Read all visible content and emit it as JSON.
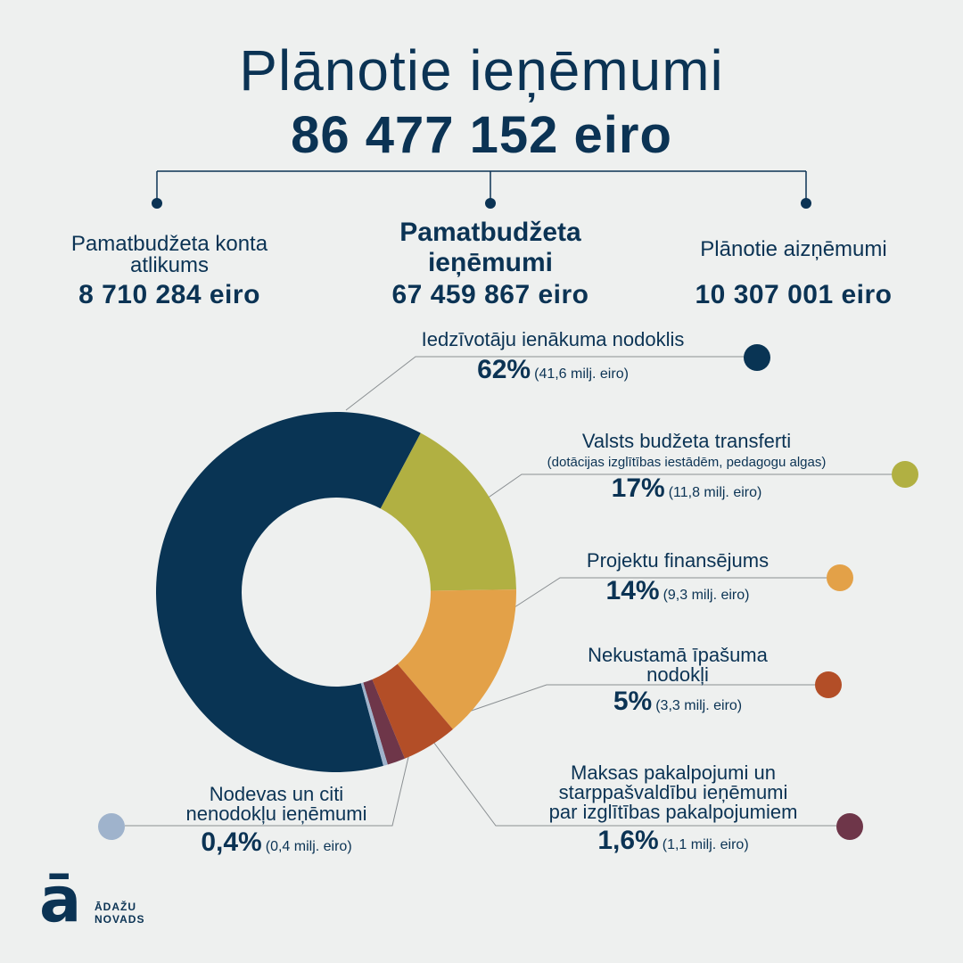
{
  "header": {
    "title": "Plānotie ieņēmumi",
    "total": "86 477 152 eiro"
  },
  "top_items": [
    {
      "label": "Pamatbudžeta konta atlikums",
      "value": "8 710 284 eiro"
    },
    {
      "label": "Pamatbudžeta ieņēmumi",
      "value": "67 459 867 eiro"
    },
    {
      "label": "Plānotie aizņēmumi",
      "value": "10 307 001 eiro"
    }
  ],
  "chart_data": {
    "type": "pie",
    "donut": true,
    "series": [
      {
        "name": "Iedzīvotāju ienākuma nodoklis",
        "pct_label": "62%",
        "amount_label": "(41,6 milj. eiro)",
        "value": 62,
        "color": "#093454"
      },
      {
        "name": "Valsts budžeta transferti",
        "note": "(dotācijas izglītības iestādēm, pedagogu algas)",
        "pct_label": "17%",
        "amount_label": "(11,8 milj. eiro)",
        "value": 17,
        "color": "#b1b042"
      },
      {
        "name": "Projektu finansējums",
        "pct_label": "14%",
        "amount_label": "(9,3 milj. eiro)",
        "value": 14,
        "color": "#e3a148"
      },
      {
        "name": "Nekustamā īpašuma nodokļi",
        "pct_label": "5%",
        "amount_label": "(3,3 milj. eiro)",
        "value": 5,
        "color": "#b34e27"
      },
      {
        "name": "Maksas pakalpojumi un starppašvaldību ieņēmumi par izglītības pakalpojumiem",
        "pct_label": "1,6%",
        "amount_label": "(1,1 milj. eiro)",
        "value": 1.6,
        "color": "#6e3649"
      },
      {
        "name": "Nodevas un citi nenodokļu ieņēmumi",
        "pct_label": "0,4%",
        "amount_label": "(0,4 milj. eiro)",
        "value": 0.4,
        "color": "#9fb3cc"
      }
    ]
  },
  "labels": {
    "s0": [
      "Iedzīvotāju ienākuma nodoklis"
    ],
    "s1": [
      "Valsts budžeta transferti"
    ],
    "s2": [
      "Projektu finansējums"
    ],
    "s3": [
      "Nekustamā īpašuma",
      "nodokļi"
    ],
    "s4": [
      "Maksas pakalpojumi un",
      "starppašvaldību ieņēmumi",
      "par izglītības pakalpojumiem"
    ],
    "s5": [
      "Nodevas un citi",
      "nenodokļu ieņēmumi"
    ]
  },
  "logo": {
    "letter": "ā",
    "line1": "ĀDAŽU",
    "line2": "NOVADS"
  }
}
